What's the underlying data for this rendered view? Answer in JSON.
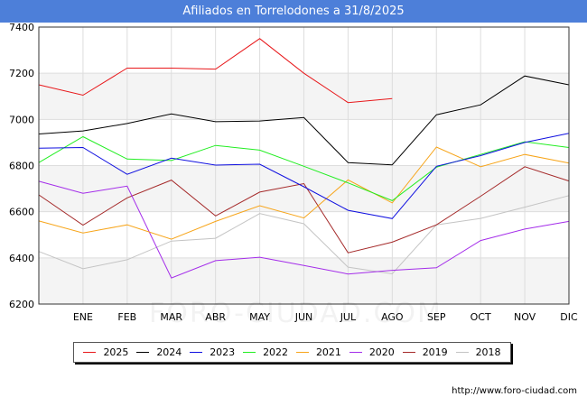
{
  "title": "Afiliados en Torrelodones a 31/8/2025",
  "footer_url": "http://www.foro-ciudad.com",
  "watermark": "FORO-CIUDAD.COM",
  "chart_data": {
    "type": "line",
    "title": "Afiliados en Torrelodones a 31/8/2025",
    "categories": [
      "",
      "ENE",
      "FEB",
      "MAR",
      "ABR",
      "MAY",
      "JUN",
      "JUL",
      "AGO",
      "SEP",
      "OCT",
      "NOV",
      "DIC"
    ],
    "ylim": [
      6200,
      7400
    ],
    "yticks": [
      6200,
      6400,
      6600,
      6800,
      7000,
      7200,
      7400
    ],
    "grid": true,
    "legend_position": "bottom",
    "series": [
      {
        "name": "2025",
        "color": "#e8181b",
        "values": [
          7150,
          7105,
          7222,
          7222,
          7218,
          7350,
          7200,
          7073,
          7090,
          null,
          null,
          null,
          null
        ]
      },
      {
        "name": "2024",
        "color": "#000000",
        "values": [
          6937,
          6950,
          6982,
          7024,
          6990,
          6993,
          7008,
          6813,
          6803,
          7020,
          7063,
          7188,
          7150
        ]
      },
      {
        "name": "2023",
        "color": "#1010e0",
        "values": [
          6875,
          6878,
          6762,
          6832,
          6802,
          6806,
          6708,
          6606,
          6570,
          6797,
          6843,
          6900,
          6940
        ]
      },
      {
        "name": "2022",
        "color": "#22ee22",
        "values": [
          6813,
          6925,
          6828,
          6822,
          6887,
          6867,
          6797,
          6725,
          6648,
          6793,
          6848,
          6903,
          6878
        ]
      },
      {
        "name": "2021",
        "color": "#f7a51a",
        "values": [
          6560,
          6508,
          6543,
          6481,
          6558,
          6626,
          6573,
          6738,
          6638,
          6880,
          6795,
          6848,
          6811
        ]
      },
      {
        "name": "2020",
        "color": "#a42dea",
        "values": [
          6732,
          6680,
          6711,
          6313,
          6388,
          6403,
          6367,
          6330,
          6346,
          6357,
          6475,
          6525,
          6558
        ]
      },
      {
        "name": "2019",
        "color": "#a52a2a",
        "values": [
          6673,
          6542,
          6660,
          6737,
          6582,
          6685,
          6722,
          6422,
          6468,
          6543,
          6667,
          6795,
          6733
        ]
      },
      {
        "name": "2018",
        "color": "#c4c4c4",
        "values": [
          6428,
          6353,
          6392,
          6473,
          6485,
          6592,
          6548,
          6360,
          6331,
          6543,
          6571,
          6620,
          6670
        ]
      }
    ]
  }
}
